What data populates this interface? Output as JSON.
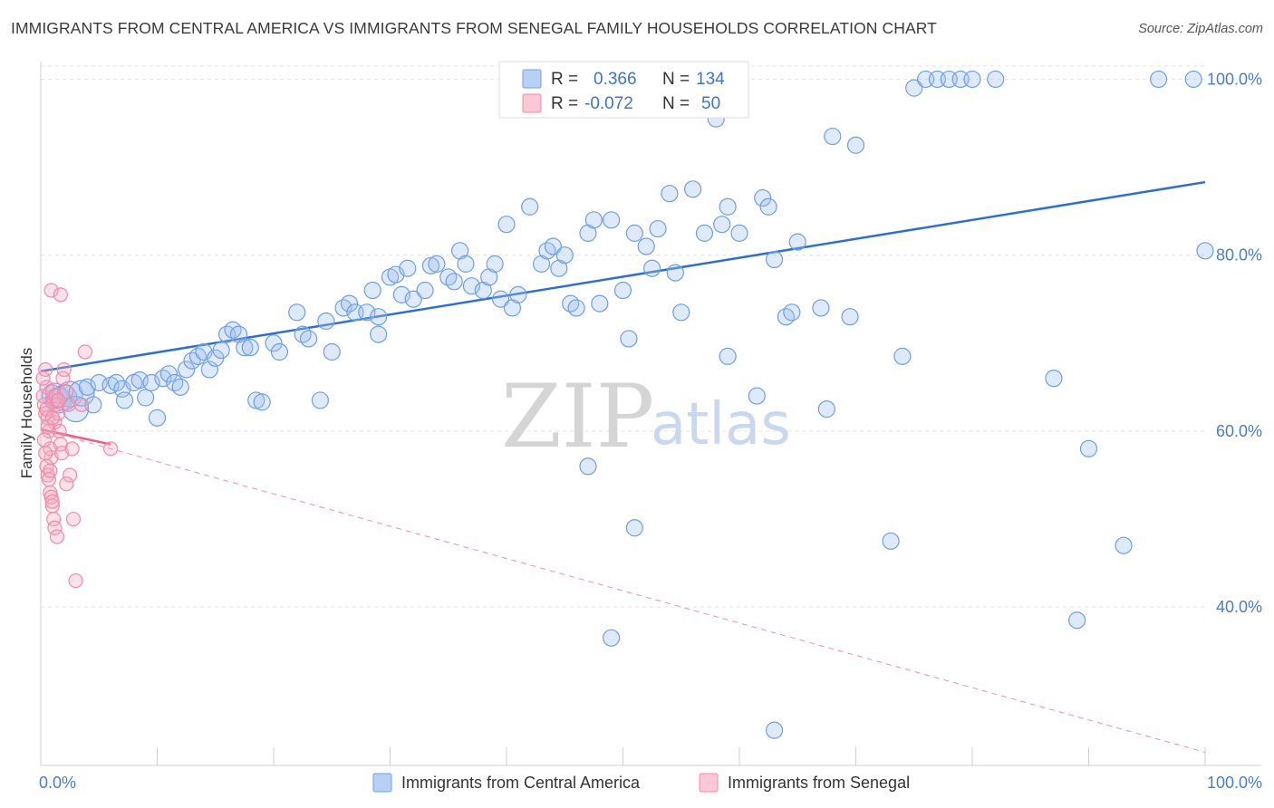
{
  "title": "IMMIGRANTS FROM CENTRAL AMERICA VS IMMIGRANTS FROM SENEGAL FAMILY HOUSEHOLDS CORRELATION CHART",
  "source": "Source: ZipAtlas.com",
  "watermark": {
    "zip": "ZIP",
    "atlas": "atlas"
  },
  "legend": {
    "r_label": "R =",
    "n_label": "N =",
    "rows": [
      {
        "r": "0.366",
        "n": "134",
        "color": "#6f9fe0"
      },
      {
        "r": "-0.072",
        "n": "50",
        "color": "#f08aa8"
      }
    ]
  },
  "colors": {
    "blue": "#6f9fe0",
    "blue_line": "#2f6fcc",
    "pink": "#f08aa8",
    "pink_line": "#e8608a"
  },
  "chart_data": {
    "type": "scatter",
    "title": "IMMIGRANTS FROM CENTRAL AMERICA VS IMMIGRANTS FROM SENEGAL FAMILY HOUSEHOLDS CORRELATION CHART",
    "xlabel": "",
    "ylabel": "Family Households",
    "xlim": [
      0,
      100
    ],
    "ylim": [
      22,
      102
    ],
    "x_tick_labels": [
      {
        "value": 0,
        "label": "0.0%"
      },
      {
        "value": 100,
        "label": "100.0%"
      }
    ],
    "x_minor_ticks": [
      10,
      20,
      30,
      40,
      50,
      60,
      70,
      80,
      90
    ],
    "y_ticks": [
      {
        "value": 40,
        "label": "40.0%"
      },
      {
        "value": 60,
        "label": "60.0%"
      },
      {
        "value": 80,
        "label": "80.0%"
      },
      {
        "value": 100,
        "label": "100.0%"
      }
    ],
    "grid": true,
    "legend_placement": "top-center",
    "series": [
      {
        "name": "Immigrants from Central America",
        "color": "#6f9fe0",
        "trend": {
          "x": [
            0,
            100
          ],
          "y": [
            66.8,
            88.3
          ]
        },
        "points": [
          [
            1.2,
            64
          ],
          [
            1.5,
            63.5
          ],
          [
            2,
            63.8
          ],
          [
            2.5,
            64.2
          ],
          [
            3,
            62.5
          ],
          [
            3.5,
            64.3
          ],
          [
            4,
            65
          ],
          [
            4.5,
            63
          ],
          [
            5,
            65.5
          ],
          [
            6,
            65.2
          ],
          [
            6.5,
            65.5
          ],
          [
            7,
            64.8
          ],
          [
            7.2,
            63.5
          ],
          [
            8,
            65.5
          ],
          [
            8.5,
            65.8
          ],
          [
            9,
            63.8
          ],
          [
            9.5,
            65.5
          ],
          [
            10,
            61.5
          ],
          [
            10.5,
            66
          ],
          [
            11,
            66.5
          ],
          [
            11.5,
            65.5
          ],
          [
            12,
            65
          ],
          [
            12.5,
            67
          ],
          [
            13,
            68
          ],
          [
            13.5,
            68.5
          ],
          [
            14,
            69
          ],
          [
            14.5,
            67
          ],
          [
            15,
            68.3
          ],
          [
            15.5,
            69.2
          ],
          [
            16,
            71
          ],
          [
            16.5,
            71.5
          ],
          [
            17,
            71
          ],
          [
            17.5,
            69.5
          ],
          [
            18,
            69.5
          ],
          [
            18.5,
            63.5
          ],
          [
            19,
            63.3
          ],
          [
            20,
            70
          ],
          [
            20.5,
            69
          ],
          [
            22,
            73.5
          ],
          [
            22.5,
            71
          ],
          [
            23,
            70.5
          ],
          [
            24,
            63.5
          ],
          [
            24.5,
            72.5
          ],
          [
            25,
            69
          ],
          [
            26,
            74
          ],
          [
            26.5,
            74.5
          ],
          [
            27,
            73.5
          ],
          [
            28,
            73.5
          ],
          [
            28.5,
            76
          ],
          [
            29,
            73
          ],
          [
            29,
            71
          ],
          [
            30,
            77.5
          ],
          [
            30.5,
            77.8
          ],
          [
            31,
            75.5
          ],
          [
            31.5,
            78.5
          ],
          [
            32,
            75
          ],
          [
            33,
            76
          ],
          [
            33.5,
            78.8
          ],
          [
            34,
            79
          ],
          [
            35,
            77.5
          ],
          [
            35.5,
            77
          ],
          [
            36,
            80.5
          ],
          [
            36.5,
            79
          ],
          [
            37,
            76.5
          ],
          [
            38,
            76
          ],
          [
            38.5,
            77.5
          ],
          [
            39,
            79
          ],
          [
            39.5,
            75
          ],
          [
            40,
            83.5
          ],
          [
            40.5,
            74
          ],
          [
            41,
            75.5
          ],
          [
            42,
            85.5
          ],
          [
            43,
            79
          ],
          [
            43.5,
            80.5
          ],
          [
            44,
            81
          ],
          [
            44.5,
            78.5
          ],
          [
            45,
            80
          ],
          [
            45.5,
            74.5
          ],
          [
            46,
            74
          ],
          [
            47,
            82.5
          ],
          [
            47.5,
            84
          ],
          [
            48,
            74.5
          ],
          [
            49,
            84
          ],
          [
            50,
            76
          ],
          [
            50.5,
            70.5
          ],
          [
            51,
            82.5
          ],
          [
            52,
            81
          ],
          [
            52.5,
            78.5
          ],
          [
            53,
            83
          ],
          [
            54,
            87
          ],
          [
            54.5,
            78
          ],
          [
            55,
            73.5
          ],
          [
            56,
            87.5
          ],
          [
            57,
            82.5
          ],
          [
            58,
            95.5
          ],
          [
            58.5,
            83.5
          ],
          [
            59,
            85.5
          ],
          [
            59,
            68.5
          ],
          [
            60,
            82.5
          ],
          [
            61.5,
            64
          ],
          [
            62,
            86.5
          ],
          [
            62.5,
            85.5
          ],
          [
            63,
            79.5
          ],
          [
            64,
            73
          ],
          [
            64.5,
            73.5
          ],
          [
            65,
            81.5
          ],
          [
            67,
            74
          ],
          [
            67.5,
            62.5
          ],
          [
            68,
            93.5
          ],
          [
            69.5,
            73
          ],
          [
            70,
            92.5
          ],
          [
            73,
            47.5
          ],
          [
            74,
            68.5
          ],
          [
            75,
            99
          ],
          [
            76,
            100
          ],
          [
            77,
            100
          ],
          [
            78,
            100
          ],
          [
            79,
            100
          ],
          [
            80,
            100
          ],
          [
            82,
            100
          ],
          [
            87,
            66
          ],
          [
            89,
            38.5
          ],
          [
            90,
            58
          ],
          [
            93,
            47
          ],
          [
            96,
            100
          ],
          [
            99,
            100
          ],
          [
            100,
            80.5
          ],
          [
            51.5,
            100
          ],
          [
            53,
            100
          ],
          [
            47,
            56
          ],
          [
            51,
            49
          ],
          [
            49,
            36.5
          ],
          [
            63,
            26
          ]
        ]
      },
      {
        "name": "Immigrants from Senegal",
        "color": "#f08aa8",
        "trend": {
          "x": [
            0,
            6
          ],
          "y": [
            60.2,
            58.5
          ]
        },
        "trend_extended": {
          "x": [
            0,
            100
          ],
          "y": [
            60.2,
            23.5
          ]
        },
        "points": [
          [
            0.2,
            64
          ],
          [
            0.3,
            63
          ],
          [
            0.4,
            62
          ],
          [
            0.5,
            65
          ],
          [
            0.6,
            61.5
          ],
          [
            0.7,
            60
          ],
          [
            0.8,
            58
          ],
          [
            0.9,
            57
          ],
          [
            1,
            64.5
          ],
          [
            1.1,
            63.5
          ],
          [
            0.3,
            59
          ],
          [
            0.4,
            57.5
          ],
          [
            0.5,
            56
          ],
          [
            0.6,
            55
          ],
          [
            0.7,
            54.5
          ],
          [
            0.8,
            53
          ],
          [
            0.9,
            52.5
          ],
          [
            1,
            51.5
          ],
          [
            1.1,
            50
          ],
          [
            1.2,
            61
          ],
          [
            1.3,
            64
          ],
          [
            1.4,
            63
          ],
          [
            1.5,
            62
          ],
          [
            1.6,
            60
          ],
          [
            1.7,
            58.5
          ],
          [
            1.8,
            57.5
          ],
          [
            1.9,
            66
          ],
          [
            2,
            67
          ],
          [
            2.2,
            64.5
          ],
          [
            2.4,
            63
          ],
          [
            0.2,
            66
          ],
          [
            0.4,
            67
          ],
          [
            0.5,
            62.5
          ],
          [
            0.6,
            60.5
          ],
          [
            0.8,
            55.5
          ],
          [
            1,
            52
          ],
          [
            1.2,
            49
          ],
          [
            1.4,
            48
          ],
          [
            2.5,
            55
          ],
          [
            2.7,
            58
          ],
          [
            2.8,
            50
          ],
          [
            3,
            43
          ],
          [
            3.5,
            63
          ],
          [
            3.8,
            69
          ],
          [
            0.9,
            76
          ],
          [
            1.7,
            75.5
          ],
          [
            2.2,
            54
          ],
          [
            1,
            61.5
          ],
          [
            1.5,
            63.5
          ],
          [
            6,
            58
          ]
        ]
      }
    ]
  },
  "bottom_legend": [
    {
      "label": "Immigrants from Central America",
      "color": "#6f9fe0"
    },
    {
      "label": "Immigrants from Senegal",
      "color": "#f08aa8"
    }
  ]
}
